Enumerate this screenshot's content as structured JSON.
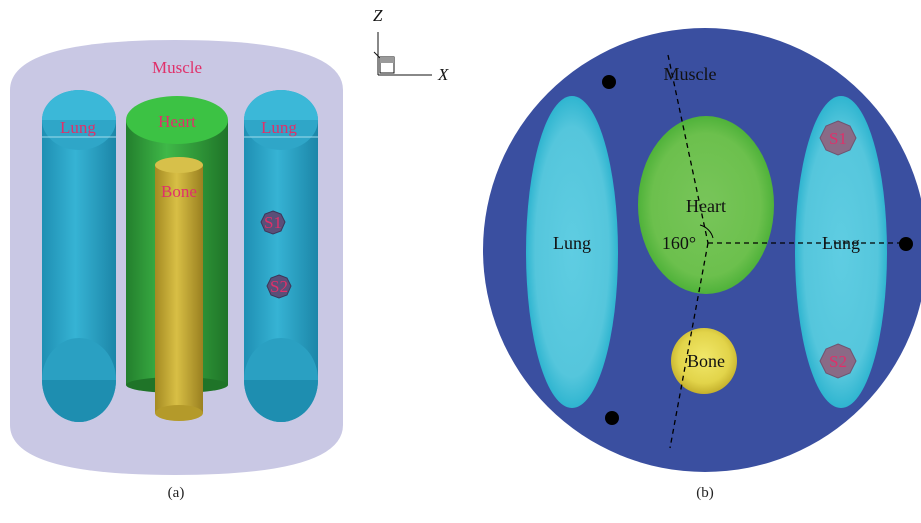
{
  "panel_a": {
    "caption": "(a)",
    "labels": {
      "muscle": "Muscle",
      "lung_left": "Lung",
      "heart": "Heart",
      "lung_right": "Lung",
      "bone": "Bone",
      "s1": "S1",
      "s2": "S2"
    },
    "axis": {
      "z": "Z",
      "x": "X"
    }
  },
  "panel_b": {
    "caption": "(b)",
    "labels": {
      "muscle": "Muscle",
      "heart": "Heart",
      "lung_left": "Lung",
      "lung_right": "Lung",
      "angle": "160°",
      "bone": "Bone",
      "s1": "S1",
      "s2": "S2"
    }
  },
  "colors": {
    "muscle_a": "#c9c8e4",
    "lung": "#2aa8c9",
    "heart": "#2f9e3a",
    "bone": "#c9ae35",
    "source": "#5a4f78",
    "muscle_b": "#3a4fa0",
    "lung_b": "#58c8df",
    "heart_b": "#6cc04d",
    "bone_b": "#e2d44a",
    "label_red": "#e0306a"
  }
}
